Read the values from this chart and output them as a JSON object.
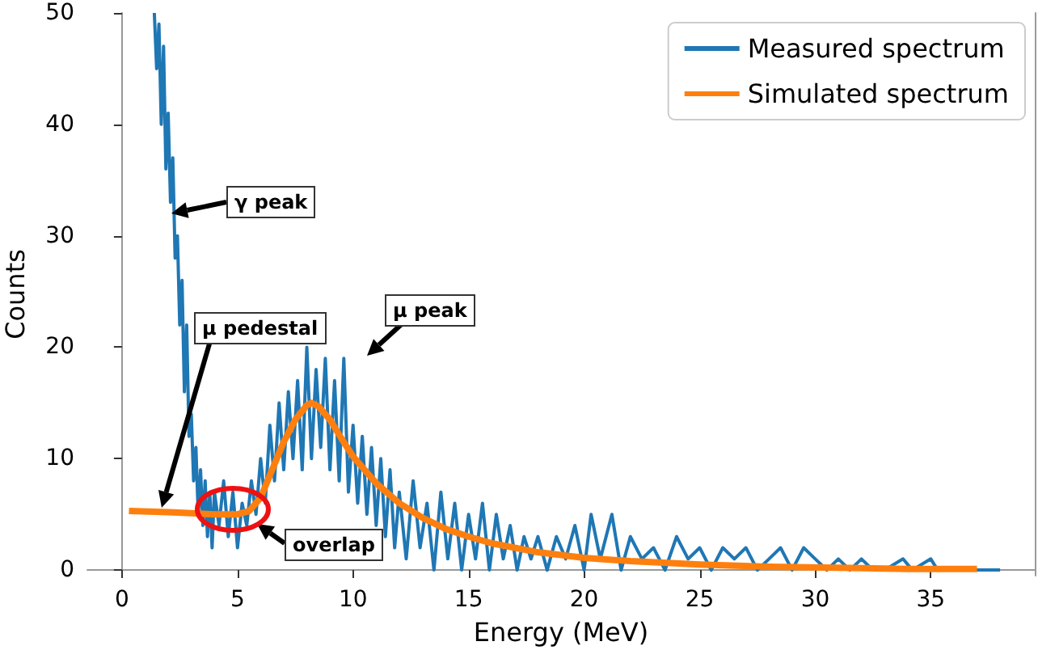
{
  "chart_data": {
    "type": "line",
    "xlabel": "Energy (MeV)",
    "ylabel": "Counts",
    "xlim": [
      -1.5,
      39.5
    ],
    "ylim": [
      -0.5,
      50
    ],
    "xticks": [
      0,
      5,
      10,
      15,
      20,
      25,
      30,
      35
    ],
    "yticks": [
      0,
      10,
      20,
      30,
      40,
      50
    ],
    "legend": "top right",
    "series": [
      {
        "name": "Measured spectrum",
        "color": "#1f77b4",
        "x": [
          1.4,
          1.5,
          1.6,
          1.7,
          1.8,
          1.9,
          2.0,
          2.1,
          2.2,
          2.3,
          2.4,
          2.5,
          2.6,
          2.7,
          2.8,
          2.9,
          3.0,
          3.1,
          3.2,
          3.3,
          3.4,
          3.5,
          3.6,
          3.7,
          3.8,
          3.9,
          4.0,
          4.2,
          4.4,
          4.6,
          4.8,
          5.0,
          5.2,
          5.4,
          5.6,
          5.8,
          6.0,
          6.2,
          6.4,
          6.6,
          6.8,
          7.0,
          7.2,
          7.4,
          7.6,
          7.8,
          8.0,
          8.2,
          8.4,
          8.6,
          8.8,
          9.0,
          9.2,
          9.4,
          9.6,
          9.8,
          10.0,
          10.2,
          10.4,
          10.6,
          10.8,
          11.0,
          11.2,
          11.4,
          11.6,
          11.8,
          12.0,
          12.3,
          12.6,
          12.9,
          13.2,
          13.5,
          13.8,
          14.1,
          14.4,
          14.7,
          15.0,
          15.3,
          15.6,
          15.9,
          16.2,
          16.5,
          16.8,
          17.1,
          17.4,
          17.7,
          18.0,
          18.4,
          18.8,
          19.2,
          19.6,
          20.0,
          20.3,
          20.7,
          21.2,
          21.6,
          22.0,
          22.5,
          23.0,
          23.5,
          24.0,
          24.5,
          25.0,
          25.5,
          26.0,
          26.5,
          27.0,
          27.5,
          28.0,
          28.5,
          29.0,
          29.5,
          30.0,
          30.5,
          31.0,
          31.5,
          32.0,
          32.5,
          33.0,
          33.8,
          34.2,
          35.0,
          35.3,
          38.0
        ],
        "values": [
          50,
          45,
          49,
          40,
          47,
          36,
          41,
          33,
          37,
          28,
          30,
          22,
          26,
          16,
          22,
          12,
          14,
          8,
          11,
          5,
          9,
          4,
          8,
          3,
          7,
          2,
          7,
          4,
          8,
          3,
          7,
          2,
          6,
          4,
          8,
          5,
          10,
          6,
          13,
          8,
          15,
          9,
          16,
          10,
          17,
          9,
          20,
          10,
          18,
          11,
          19,
          9,
          17,
          8,
          19,
          7,
          13,
          6,
          12,
          5,
          11,
          4,
          10,
          3,
          9,
          2,
          7,
          1,
          8,
          2,
          6,
          0,
          7,
          1,
          6,
          0,
          5,
          1,
          6,
          0,
          5,
          1,
          4,
          0,
          3,
          1,
          3,
          0,
          3,
          1,
          4,
          0,
          5,
          1,
          5,
          0,
          3,
          1,
          2,
          0,
          3,
          1,
          2,
          0,
          2,
          1,
          2,
          0,
          1,
          2,
          0,
          2,
          1,
          0,
          1,
          0,
          1,
          0,
          0,
          1,
          0,
          1,
          0,
          0
        ]
      },
      {
        "name": "Simulated spectrum",
        "color": "#ff7f0e",
        "x": [
          0.3,
          2,
          3,
          4,
          5,
          5.5,
          6,
          6.5,
          7,
          7.5,
          8,
          8.2,
          8.5,
          9,
          9.5,
          10,
          11,
          12,
          13,
          14,
          15,
          16,
          18,
          20,
          22,
          25,
          28,
          31,
          34,
          37
        ],
        "values": [
          5.3,
          5.2,
          5.1,
          5.0,
          5.0,
          5.3,
          6.5,
          9,
          11.5,
          13.5,
          14.8,
          15,
          14.7,
          13.5,
          11.8,
          10.2,
          7.8,
          6,
          4.7,
          3.7,
          3,
          2.4,
          1.6,
          1.1,
          0.8,
          0.5,
          0.3,
          0.2,
          0.1,
          0.1
        ]
      }
    ],
    "annotations": [
      "γ peak",
      "μ pedestal",
      "μ peak",
      "overlap"
    ]
  }
}
